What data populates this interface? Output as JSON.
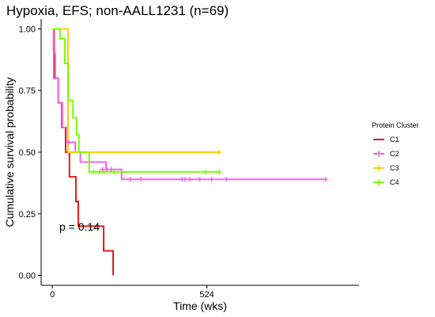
{
  "chart_data": {
    "type": "line",
    "subtype": "kaplan-meier-step",
    "title": "Hypoxia, EFS; non-AALL1231 (n=69)",
    "xlabel": "Time (wks)",
    "ylabel": "Cumulative survival probability",
    "xlim": [
      -38,
      1040
    ],
    "ylim": [
      -0.04,
      1.04
    ],
    "x_ticks": [
      0,
      524
    ],
    "x_tick_labels": [
      "0",
      "524"
    ],
    "y_ticks": [
      0,
      0.25,
      0.5,
      0.75,
      1.0
    ],
    "y_tick_labels": [
      "0.00",
      "0.25",
      "0.50",
      "0.75",
      "1.00"
    ],
    "grid": false,
    "legend": {
      "title": "Protein Cluster",
      "position": "right"
    },
    "annotation": "p = 0.14",
    "series": [
      {
        "name": "C1",
        "color": "#e41a1c",
        "steps": [
          [
            0,
            1.0
          ],
          [
            6,
            0.8
          ],
          [
            20,
            0.7
          ],
          [
            32,
            0.6
          ],
          [
            45,
            0.5
          ],
          [
            58,
            0.4
          ],
          [
            80,
            0.3
          ],
          [
            88,
            0.2
          ],
          [
            174,
            0.1
          ],
          [
            206,
            0.0
          ]
        ],
        "censored": []
      },
      {
        "name": "C2",
        "color": "#f564e3",
        "steps": [
          [
            0,
            1.0
          ],
          [
            4,
            0.9
          ],
          [
            10,
            0.8
          ],
          [
            20,
            0.7
          ],
          [
            34,
            0.6
          ],
          [
            52,
            0.54
          ],
          [
            78,
            0.5
          ],
          [
            95,
            0.46
          ],
          [
            182,
            0.43
          ],
          [
            235,
            0.39
          ],
          [
            927,
            0.39
          ]
        ],
        "censored": [
          [
            55,
            0.54
          ],
          [
            170,
            0.43
          ],
          [
            185,
            0.43
          ],
          [
            200,
            0.43
          ],
          [
            265,
            0.39
          ],
          [
            300,
            0.39
          ],
          [
            440,
            0.39
          ],
          [
            450,
            0.39
          ],
          [
            466,
            0.39
          ],
          [
            500,
            0.39
          ],
          [
            540,
            0.39
          ],
          [
            590,
            0.39
          ],
          [
            927,
            0.39
          ]
        ]
      },
      {
        "name": "C3",
        "color": "#ffcc00",
        "steps": [
          [
            0,
            1.0
          ],
          [
            53,
            0.5
          ],
          [
            565,
            0.5
          ]
        ],
        "censored": [
          [
            565,
            0.5
          ]
        ]
      },
      {
        "name": "C4",
        "color": "#7cfc00",
        "steps": [
          [
            0,
            1.0
          ],
          [
            26,
            0.96
          ],
          [
            42,
            0.86
          ],
          [
            54,
            0.71
          ],
          [
            70,
            0.64
          ],
          [
            82,
            0.57
          ],
          [
            90,
            0.5
          ],
          [
            125,
            0.42
          ],
          [
            566,
            0.42
          ]
        ],
        "censored": [
          [
            140,
            0.42
          ],
          [
            160,
            0.42
          ],
          [
            175,
            0.42
          ],
          [
            210,
            0.42
          ],
          [
            520,
            0.42
          ],
          [
            566,
            0.42
          ]
        ]
      }
    ]
  }
}
